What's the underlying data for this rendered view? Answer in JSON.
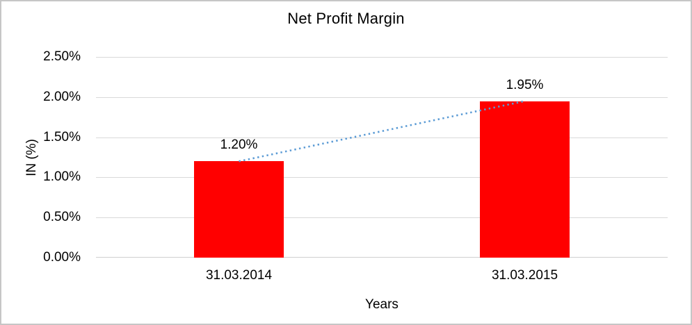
{
  "window": {
    "background": "#ffffff",
    "frame_border_color": "#c6c6c6"
  },
  "chart_data": {
    "type": "bar",
    "title": "Net Profit Margin",
    "xlabel": "Years",
    "ylabel": "IN (%)",
    "categories": [
      "31.03.2014",
      "31.03.2015"
    ],
    "values": [
      1.2,
      1.95
    ],
    "data_labels": [
      "1.20%",
      "1.95%"
    ],
    "ytick_values": [
      0,
      0.5,
      1.0,
      1.5,
      2.0,
      2.5
    ],
    "ytick_labels": [
      "0.00%",
      "0.50%",
      "1.00%",
      "1.50%",
      "2.00%",
      "2.50%"
    ],
    "ylim": [
      0,
      2.5
    ],
    "grid": true,
    "legend": "none",
    "bar_color": "#ff0000",
    "gridline_color": "#d9d9d9",
    "trendline": {
      "style": "dotted",
      "color": "#5b9bd5",
      "from_value": 1.2,
      "to_value": 1.95
    }
  }
}
